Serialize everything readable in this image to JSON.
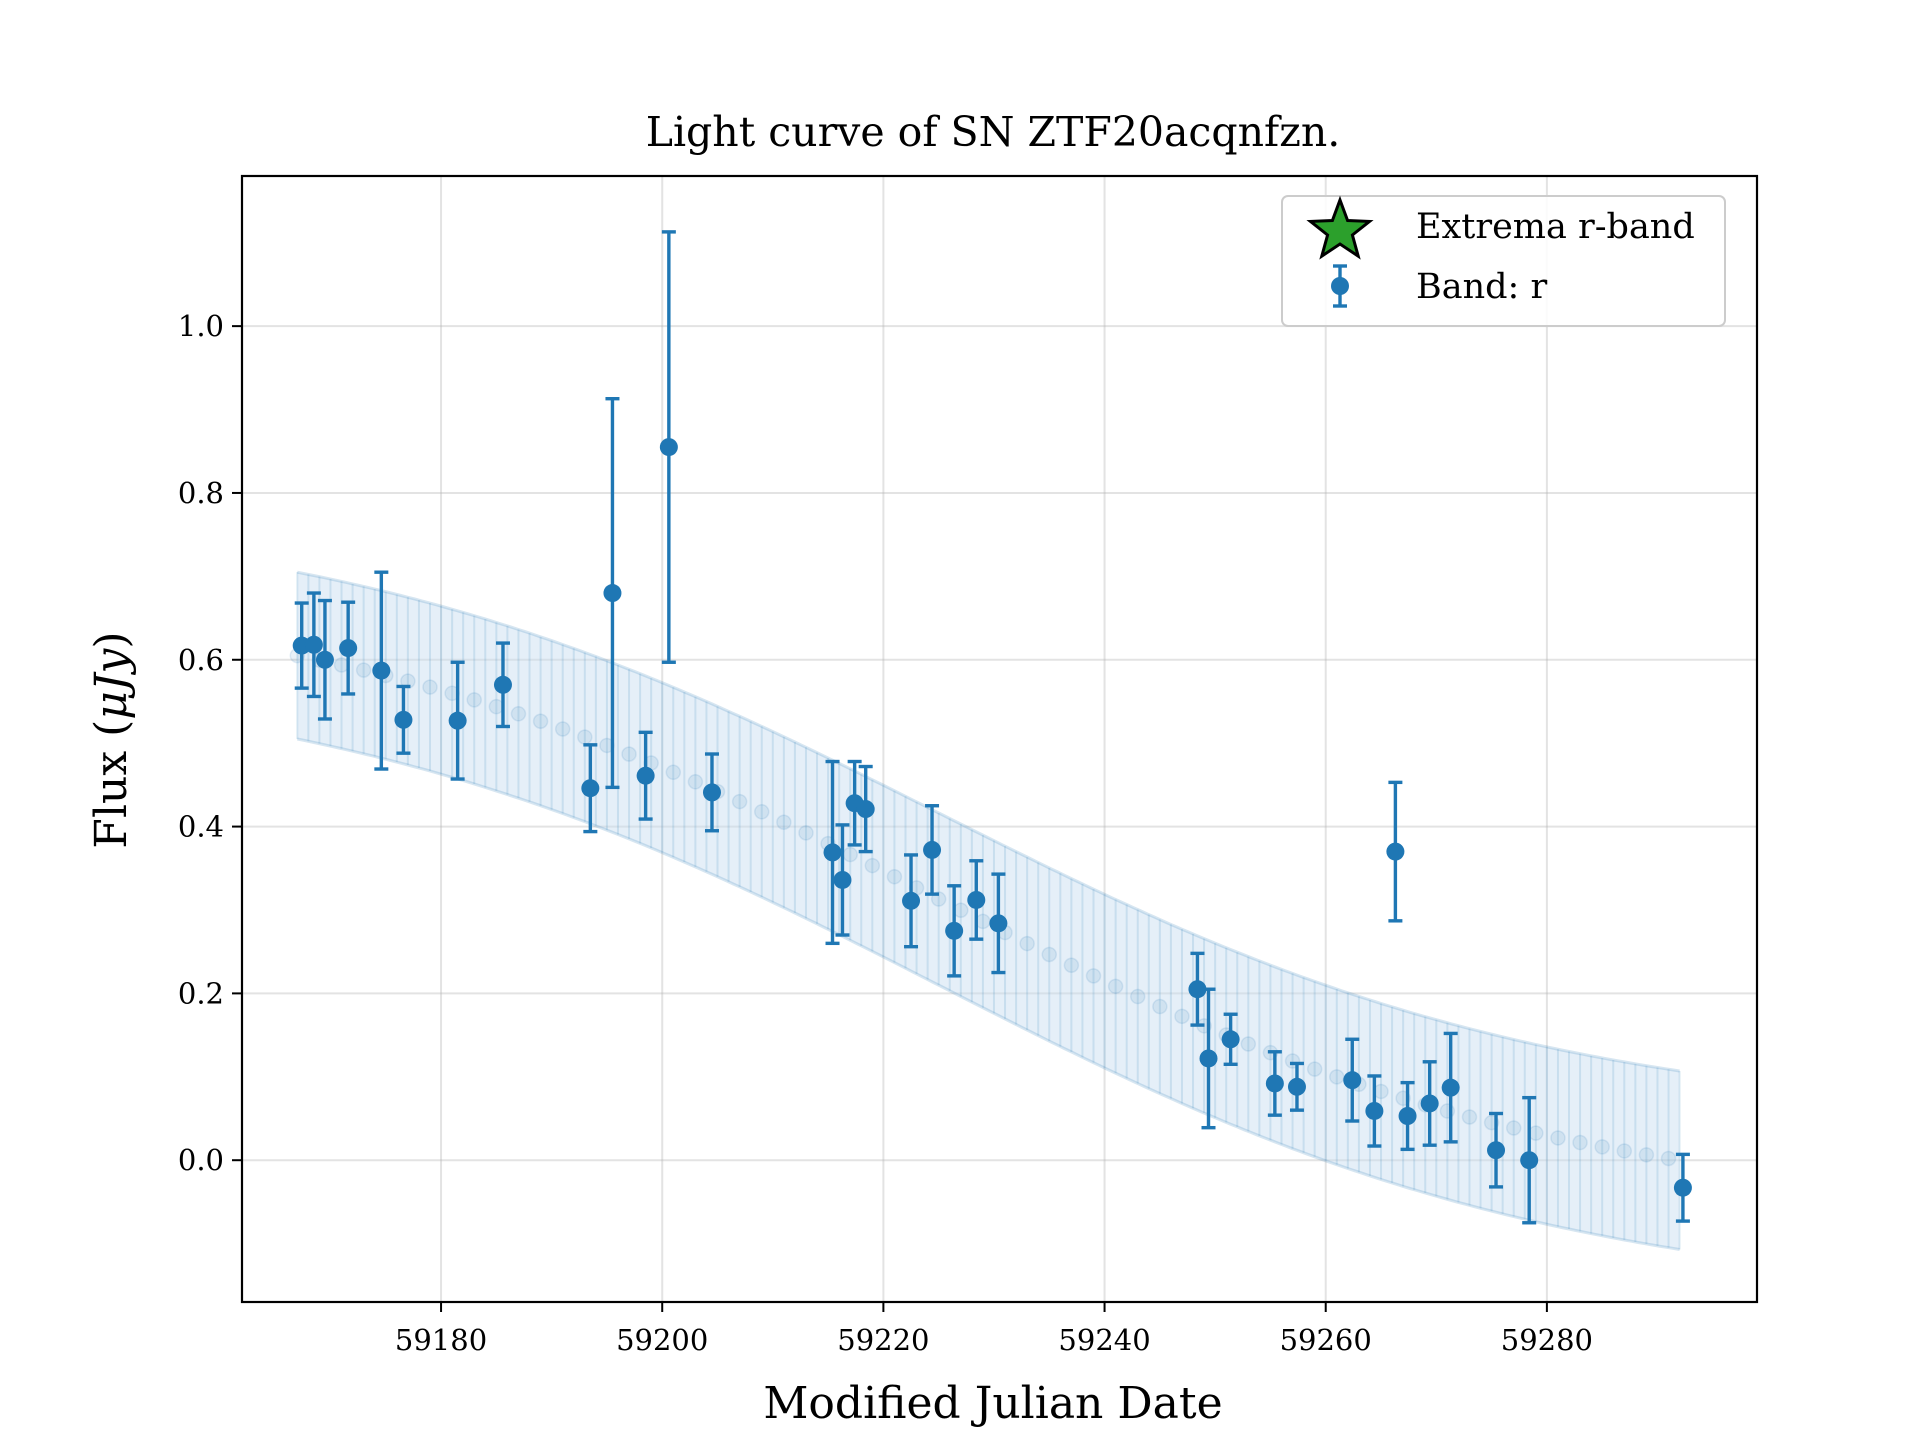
{
  "chart_data": {
    "type": "scatter",
    "title": "Light curve of SN ZTF20acqnfzn.",
    "xlabel": "Modified Julian Date",
    "ylabel_text": "Flux (",
    "ylabel_unit": "μJy",
    "ylabel_close": ")",
    "xlim": [
      59162,
      59299
    ],
    "ylim": [
      -0.17,
      1.18
    ],
    "xticks": [
      59180,
      59200,
      59220,
      59240,
      59260,
      59280
    ],
    "xtick_labels": [
      "59180",
      "59200",
      "59220",
      "59240",
      "59260",
      "59280"
    ],
    "yticks": [
      0.0,
      0.2,
      0.4,
      0.6,
      0.8,
      1.0
    ],
    "ytick_labels": [
      "0.0",
      "0.2",
      "0.4",
      "0.6",
      "0.8",
      "1.0"
    ],
    "grid": true,
    "legend_position": "top-right",
    "colors": {
      "band_r": "#1f77b4",
      "extrema": "#2ca02c",
      "band_fill": "#c6dbef"
    },
    "legend": [
      {
        "label": "Extrema r-band",
        "marker": "star"
      },
      {
        "label": "Band: r",
        "marker": "errorbar-dot"
      }
    ],
    "model": {
      "x_start": 59167,
      "x_end": 59292,
      "mean_start": 0.605,
      "mean_end": 0.0,
      "mean_mid_x": 59225,
      "mean_scale": 28,
      "band_halfwidth_start": 0.1,
      "band_halfwidth_end": 0.107,
      "marker_spacing": 2
    },
    "series": [
      {
        "name": "Band: r",
        "points": [
          {
            "x": 59167.4,
            "y": 0.617,
            "err": 0.051
          },
          {
            "x": 59168.5,
            "y": 0.618,
            "err": 0.062
          },
          {
            "x": 59169.5,
            "y": 0.6,
            "err": 0.071
          },
          {
            "x": 59171.6,
            "y": 0.614,
            "err": 0.055
          },
          {
            "x": 59174.6,
            "y": 0.587,
            "err": 0.118
          },
          {
            "x": 59176.6,
            "y": 0.528,
            "err": 0.04
          },
          {
            "x": 59181.5,
            "y": 0.527,
            "err": 0.07
          },
          {
            "x": 59185.6,
            "y": 0.57,
            "err": 0.05
          },
          {
            "x": 59193.5,
            "y": 0.446,
            "err": 0.052
          },
          {
            "x": 59195.5,
            "y": 0.68,
            "err": 0.233
          },
          {
            "x": 59198.5,
            "y": 0.461,
            "err": 0.052
          },
          {
            "x": 59200.6,
            "y": 0.855,
            "err": 0.258
          },
          {
            "x": 59204.5,
            "y": 0.441,
            "err": 0.046
          },
          {
            "x": 59215.4,
            "y": 0.369,
            "err": 0.109
          },
          {
            "x": 59216.3,
            "y": 0.336,
            "err": 0.066
          },
          {
            "x": 59217.4,
            "y": 0.428,
            "err": 0.05
          },
          {
            "x": 59218.4,
            "y": 0.421,
            "err": 0.051
          },
          {
            "x": 59222.5,
            "y": 0.311,
            "err": 0.055
          },
          {
            "x": 59224.4,
            "y": 0.372,
            "err": 0.053
          },
          {
            "x": 59226.4,
            "y": 0.275,
            "err": 0.054
          },
          {
            "x": 59228.4,
            "y": 0.312,
            "err": 0.047
          },
          {
            "x": 59230.4,
            "y": 0.284,
            "err": 0.059
          },
          {
            "x": 59248.4,
            "y": 0.205,
            "err": 0.043
          },
          {
            "x": 59249.4,
            "y": 0.122,
            "err": 0.083
          },
          {
            "x": 59251.4,
            "y": 0.145,
            "err": 0.03
          },
          {
            "x": 59255.4,
            "y": 0.092,
            "err": 0.038
          },
          {
            "x": 59257.4,
            "y": 0.088,
            "err": 0.028
          },
          {
            "x": 59262.4,
            "y": 0.096,
            "err": 0.049
          },
          {
            "x": 59264.4,
            "y": 0.059,
            "err": 0.042
          },
          {
            "x": 59266.3,
            "y": 0.37,
            "err": 0.083
          },
          {
            "x": 59267.4,
            "y": 0.053,
            "err": 0.04
          },
          {
            "x": 59269.4,
            "y": 0.068,
            "err": 0.05
          },
          {
            "x": 59271.3,
            "y": 0.087,
            "err": 0.065
          },
          {
            "x": 59275.4,
            "y": 0.012,
            "err": 0.044
          },
          {
            "x": 59278.4,
            "y": 0.0,
            "err": 0.075
          },
          {
            "x": 59292.3,
            "y": -0.033,
            "err": 0.04
          }
        ]
      }
    ]
  }
}
